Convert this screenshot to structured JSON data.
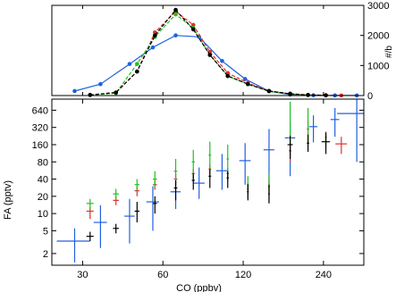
{
  "chart_data": [
    {
      "type": "line",
      "panel": "top",
      "xscale": "log",
      "xlim": [
        23,
        340
      ],
      "ylim": [
        0,
        3000
      ],
      "yaxis_side": "right",
      "yticks": [
        0,
        1000,
        2000,
        3000
      ],
      "ytick_labels": [
        "0",
        "1000",
        "2000",
        "3000"
      ],
      "ylabel_fragment": "#/b",
      "xlabel": "",
      "ylabel": "",
      "grid": false,
      "series": [
        {
          "color": "#2060e0",
          "dash": "solid",
          "x": [
            28,
            35,
            45,
            55,
            67,
            82,
            100,
            122,
            150,
            180,
            220,
            265,
            320
          ],
          "y": [
            150,
            380,
            1050,
            1600,
            2000,
            1950,
            1150,
            550,
            150,
            30,
            10,
            5,
            3
          ]
        },
        {
          "color": "#e03030",
          "dash": "dashed",
          "x": [
            32,
            40,
            48,
            56,
            67,
            78,
            90,
            105,
            125,
            150,
            180,
            210,
            245,
            280
          ],
          "y": [
            20,
            100,
            800,
            2100,
            2800,
            2350,
            1450,
            750,
            420,
            150,
            60,
            20,
            8,
            4
          ]
        },
        {
          "color": "#20c020",
          "dash": "dashed",
          "x": [
            32,
            40,
            48,
            56,
            67,
            78,
            90,
            105,
            125,
            150,
            180,
            210,
            245
          ],
          "y": [
            15,
            80,
            1050,
            1950,
            2700,
            2250,
            1350,
            650,
            380,
            140,
            50,
            15,
            6
          ]
        },
        {
          "color": "#000000",
          "dash": "dashed",
          "x": [
            32,
            40,
            48,
            56,
            67,
            78,
            90,
            105,
            125,
            150,
            180,
            210,
            245
          ],
          "y": [
            20,
            100,
            800,
            2000,
            2850,
            2200,
            1350,
            650,
            380,
            150,
            60,
            20,
            8
          ]
        }
      ]
    },
    {
      "type": "scatter",
      "panel": "bottom",
      "xscale": "log",
      "yscale": "log",
      "xlim": [
        23,
        340
      ],
      "ylim": [
        1.25,
        1000
      ],
      "xticks": [
        30,
        60,
        120,
        240
      ],
      "xtick_labels": [
        "30",
        "60",
        "120",
        "240"
      ],
      "yticks": [
        2,
        5,
        10,
        20,
        40,
        80,
        160,
        320,
        640
      ],
      "ytick_labels": [
        "2",
        "5",
        "10",
        "20",
        "40",
        "80",
        "160",
        "320",
        "640"
      ],
      "xlabel": "CO (ppbv)",
      "ylabel": "FA (pptv)",
      "grid": false,
      "series": [
        {
          "color": "#2060e0",
          "points": [
            {
              "x": 28,
              "y": 3.3,
              "xlo": 24,
              "xhi": 32,
              "ylo": 1.4,
              "yhi": 5.5
            },
            {
              "x": 35,
              "y": 7,
              "xlo": 33,
              "xhi": 37,
              "ylo": 2.5,
              "yhi": 14
            },
            {
              "x": 45,
              "y": 9,
              "xlo": 43,
              "xhi": 47,
              "ylo": 3,
              "yhi": 18
            },
            {
              "x": 55,
              "y": 16,
              "xlo": 52,
              "xhi": 58,
              "ylo": 5,
              "yhi": 30
            },
            {
              "x": 67,
              "y": 24,
              "xlo": 64,
              "xhi": 70,
              "ylo": 12,
              "yhi": 50
            },
            {
              "x": 82,
              "y": 34,
              "xlo": 78,
              "xhi": 86,
              "ylo": 18,
              "yhi": 64
            },
            {
              "x": 100,
              "y": 56,
              "xlo": 95,
              "xhi": 105,
              "ylo": 26,
              "yhi": 110
            },
            {
              "x": 122,
              "y": 84,
              "xlo": 116,
              "xhi": 128,
              "ylo": 32,
              "yhi": 170
            },
            {
              "x": 150,
              "y": 130,
              "xlo": 143,
              "xhi": 157,
              "ylo": 28,
              "yhi": 300
            },
            {
              "x": 180,
              "y": 210,
              "xlo": 172,
              "xhi": 188,
              "ylo": 45,
              "yhi": 400
            },
            {
              "x": 220,
              "y": 330,
              "xlo": 212,
              "xhi": 228,
              "ylo": 175,
              "yhi": 520
            },
            {
              "x": 265,
              "y": 440,
              "xlo": 255,
              "xhi": 275,
              "ylo": 220,
              "yhi": 700
            },
            {
              "x": 320,
              "y": 560,
              "xlo": 270,
              "xhi": 420,
              "ylo": 80,
              "yhi": 1000
            }
          ]
        },
        {
          "color": "#e03030",
          "points": [
            {
              "x": 32,
              "y": 11,
              "xlo": 31,
              "xhi": 33,
              "ylo": 8,
              "yhi": 13
            },
            {
              "x": 40,
              "y": 17,
              "xlo": 39,
              "xhi": 41,
              "ylo": 14,
              "yhi": 20
            },
            {
              "x": 48,
              "y": 25,
              "xlo": 47,
              "xhi": 49,
              "ylo": 20,
              "yhi": 30
            },
            {
              "x": 56,
              "y": 32,
              "xlo": 55,
              "xhi": 57,
              "ylo": 26,
              "yhi": 38
            },
            {
              "x": 67,
              "y": 40,
              "xlo": 66,
              "xhi": 68,
              "ylo": 32,
              "yhi": 48
            },
            {
              "x": 78,
              "y": 50,
              "xlo": 77,
              "xhi": 79,
              "ylo": 40,
              "yhi": 60
            },
            {
              "x": 90,
              "y": 60,
              "xlo": 89,
              "xhi": 91,
              "ylo": 48,
              "yhi": 72
            },
            {
              "x": 105,
              "y": 50,
              "xlo": 104,
              "xhi": 106,
              "ylo": 38,
              "yhi": 62
            },
            {
              "x": 125,
              "y": 27,
              "xlo": 124,
              "xhi": 126,
              "ylo": 20,
              "yhi": 34
            },
            {
              "x": 150,
              "y": 30,
              "xlo": 149,
              "xhi": 151,
              "ylo": 22,
              "yhi": 40
            },
            {
              "x": 180,
              "y": 125,
              "xlo": 178,
              "xhi": 182,
              "ylo": 80,
              "yhi": 170
            },
            {
              "x": 210,
              "y": 300,
              "xlo": 208,
              "xhi": 212,
              "ylo": 175,
              "yhi": 420
            },
            {
              "x": 245,
              "y": 215,
              "xlo": 243,
              "xhi": 247,
              "ylo": 160,
              "yhi": 270
            },
            {
              "x": 280,
              "y": 165,
              "xlo": 266,
              "xhi": 294,
              "ylo": 110,
              "yhi": 220
            }
          ]
        },
        {
          "color": "#20c020",
          "points": [
            {
              "x": 32,
              "y": 15,
              "xlo": 31,
              "xhi": 33,
              "ylo": 12,
              "yhi": 18
            },
            {
              "x": 40,
              "y": 22,
              "xlo": 39,
              "xhi": 41,
              "ylo": 18,
              "yhi": 27
            },
            {
              "x": 48,
              "y": 32,
              "xlo": 47,
              "xhi": 49,
              "ylo": 25,
              "yhi": 40
            },
            {
              "x": 56,
              "y": 40,
              "xlo": 55,
              "xhi": 57,
              "ylo": 28,
              "yhi": 55
            },
            {
              "x": 67,
              "y": 55,
              "xlo": 66,
              "xhi": 68,
              "ylo": 30,
              "yhi": 90
            },
            {
              "x": 78,
              "y": 80,
              "xlo": 77,
              "xhi": 79,
              "ylo": 40,
              "yhi": 130
            },
            {
              "x": 90,
              "y": 105,
              "xlo": 89,
              "xhi": 91,
              "ylo": 55,
              "yhi": 180
            },
            {
              "x": 105,
              "y": 90,
              "xlo": 104,
              "xhi": 106,
              "ylo": 45,
              "yhi": 160
            },
            {
              "x": 125,
              "y": 30,
              "xlo": 124,
              "xhi": 126,
              "ylo": 18,
              "yhi": 45
            },
            {
              "x": 150,
              "y": 28,
              "xlo": 149,
              "xhi": 151,
              "ylo": 16,
              "yhi": 50
            },
            {
              "x": 180,
              "y": 210,
              "xlo": 178,
              "xhi": 182,
              "ylo": 110,
              "yhi": 900
            },
            {
              "x": 210,
              "y": 170,
              "xlo": 208,
              "xhi": 212,
              "ylo": 120,
              "yhi": 700
            },
            {
              "x": 245,
              "y": 180,
              "xlo": 243,
              "xhi": 247,
              "ylo": 140,
              "yhi": 240
            }
          ]
        },
        {
          "color": "#000000",
          "points": [
            {
              "x": 32,
              "y": 4,
              "xlo": 31,
              "xhi": 33,
              "ylo": 3.3,
              "yhi": 4.8
            },
            {
              "x": 40,
              "y": 5.5,
              "xlo": 39,
              "xhi": 41,
              "ylo": 4.5,
              "yhi": 6.6
            },
            {
              "x": 48,
              "y": 11,
              "xlo": 47,
              "xhi": 49,
              "ylo": 7,
              "yhi": 16
            },
            {
              "x": 56,
              "y": 15,
              "xlo": 55,
              "xhi": 57,
              "ylo": 10,
              "yhi": 20
            },
            {
              "x": 67,
              "y": 28,
              "xlo": 66,
              "xhi": 68,
              "ylo": 17,
              "yhi": 38
            },
            {
              "x": 78,
              "y": 38,
              "xlo": 77,
              "xhi": 79,
              "ylo": 26,
              "yhi": 50
            },
            {
              "x": 90,
              "y": 45,
              "xlo": 89,
              "xhi": 91,
              "ylo": 28,
              "yhi": 60
            },
            {
              "x": 105,
              "y": 42,
              "xlo": 104,
              "xhi": 106,
              "ylo": 28,
              "yhi": 55
            },
            {
              "x": 125,
              "y": 24,
              "xlo": 124,
              "xhi": 126,
              "ylo": 17,
              "yhi": 33
            },
            {
              "x": 150,
              "y": 22,
              "xlo": 149,
              "xhi": 151,
              "ylo": 15,
              "yhi": 32
            },
            {
              "x": 180,
              "y": 160,
              "xlo": 176,
              "xhi": 184,
              "ylo": 90,
              "yhi": 230
            },
            {
              "x": 210,
              "y": 170,
              "xlo": 208,
              "xhi": 212,
              "ylo": 120,
              "yhi": 240
            },
            {
              "x": 245,
              "y": 180,
              "xlo": 236,
              "xhi": 254,
              "ylo": 110,
              "yhi": 260
            }
          ]
        }
      ]
    }
  ]
}
